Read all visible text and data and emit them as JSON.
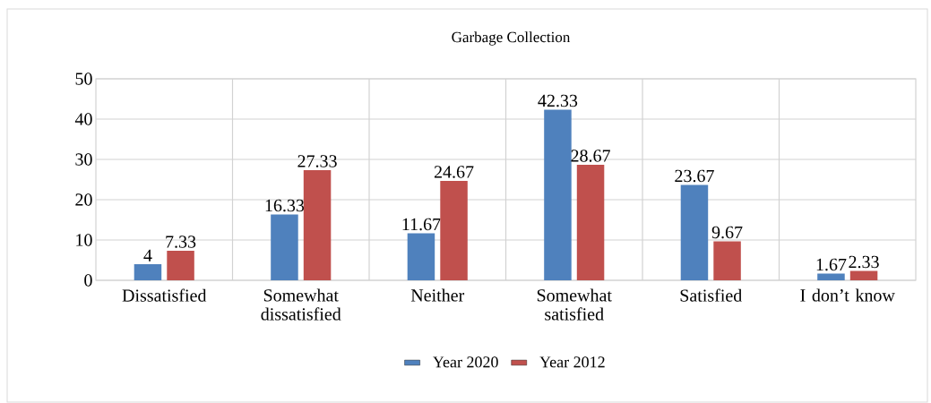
{
  "chart_data": {
    "type": "bar",
    "title": "Garbage Collection",
    "categories": [
      "Dissatisfied",
      "Somewhat dissatisfied",
      "Neither",
      "Somewhat satisfied",
      "Satisfied",
      "I don’t know"
    ],
    "series": [
      {
        "name": "Year 2020",
        "color": "#4f81bd",
        "values": [
          4,
          16.33,
          11.67,
          42.33,
          23.67,
          1.67
        ]
      },
      {
        "name": "Year 2012",
        "color": "#c0504d",
        "values": [
          7.33,
          27.33,
          24.67,
          28.67,
          9.67,
          2.33
        ]
      }
    ],
    "ylim": [
      0,
      50
    ],
    "yticks": [
      0,
      10,
      20,
      30,
      40,
      50
    ],
    "grid": true,
    "legend": "bottom",
    "data_labels": true
  }
}
